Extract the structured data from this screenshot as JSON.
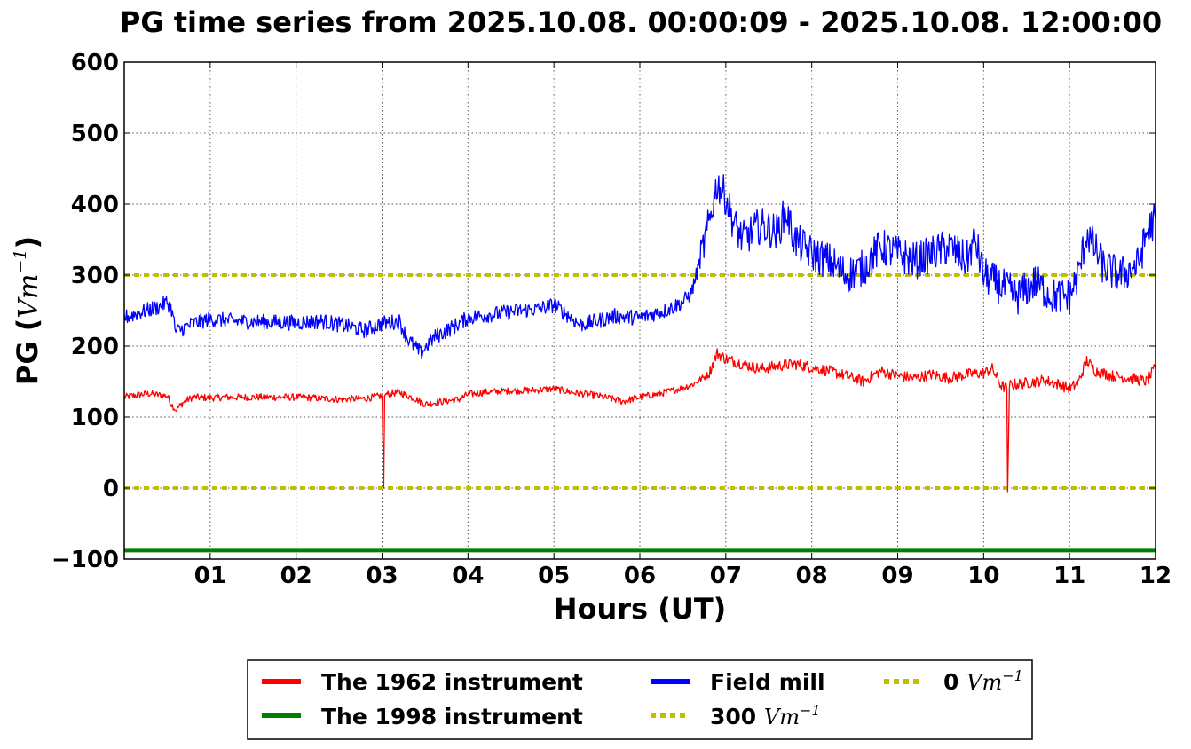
{
  "chart_data": {
    "type": "line",
    "title": "PG time series from 2025.10.08. 00:00:09 - 2025.10.08. 12:00:00",
    "xlabel": "Hours (UT)",
    "ylabel": "PG (Vm⁻¹)",
    "ylabel_main": "PG (",
    "ylabel_unit": "Vm",
    "ylabel_exp": "−1",
    "ylabel_close": ")",
    "xlim": [
      0,
      12
    ],
    "ylim": [
      -100,
      600
    ],
    "grid": true,
    "x_ticks": [
      {
        "value": 1,
        "label": "01"
      },
      {
        "value": 2,
        "label": "02"
      },
      {
        "value": 3,
        "label": "03"
      },
      {
        "value": 4,
        "label": "04"
      },
      {
        "value": 5,
        "label": "05"
      },
      {
        "value": 6,
        "label": "06"
      },
      {
        "value": 7,
        "label": "07"
      },
      {
        "value": 8,
        "label": "08"
      },
      {
        "value": 9,
        "label": "09"
      },
      {
        "value": 10,
        "label": "10"
      },
      {
        "value": 11,
        "label": "11"
      },
      {
        "value": 12,
        "label": "12"
      }
    ],
    "y_ticks": [
      {
        "value": -100,
        "label": "−100"
      },
      {
        "value": 0,
        "label": "0"
      },
      {
        "value": 100,
        "label": "100"
      },
      {
        "value": 200,
        "label": "200"
      },
      {
        "value": 300,
        "label": "300"
      },
      {
        "value": 400,
        "label": "400"
      },
      {
        "value": 500,
        "label": "500"
      },
      {
        "value": 600,
        "label": "600"
      }
    ],
    "legend_position": "below",
    "series": [
      {
        "name": "The 1962 instrument",
        "color": "#ff0000",
        "style": "solid",
        "x": [
          0,
          0.1,
          0.2,
          0.3,
          0.4,
          0.5,
          0.55,
          0.6,
          0.7,
          0.8,
          1.0,
          1.2,
          1.5,
          1.8,
          2.0,
          2.2,
          2.5,
          2.8,
          3.0,
          3.02,
          3.03,
          3.05,
          3.2,
          3.4,
          3.5,
          3.7,
          3.9,
          4.0,
          4.2,
          4.5,
          4.8,
          5.0,
          5.2,
          5.5,
          5.7,
          5.8,
          6.0,
          6.2,
          6.4,
          6.6,
          6.8,
          6.9,
          7.0,
          7.2,
          7.4,
          7.6,
          7.8,
          8.0,
          8.2,
          8.4,
          8.6,
          8.8,
          9.0,
          9.2,
          9.4,
          9.6,
          9.8,
          10.0,
          10.1,
          10.2,
          10.27,
          10.28,
          10.3,
          10.5,
          10.7,
          10.9,
          11.0,
          11.1,
          11.2,
          11.3,
          11.5,
          11.7,
          11.9,
          12.0
        ],
        "y": [
          128,
          130,
          132,
          133,
          131,
          130,
          118,
          110,
          122,
          128,
          127,
          128,
          128,
          128,
          128,
          127,
          125,
          126,
          130,
          0,
          130,
          132,
          135,
          125,
          118,
          122,
          125,
          132,
          135,
          137,
          138,
          140,
          135,
          130,
          125,
          122,
          128,
          132,
          138,
          145,
          160,
          190,
          182,
          175,
          168,
          172,
          175,
          170,
          165,
          158,
          150,
          165,
          158,
          155,
          160,
          155,
          160,
          162,
          168,
          145,
          140,
          -5,
          145,
          148,
          152,
          145,
          140,
          148,
          180,
          165,
          158,
          155,
          150,
          170
        ]
      },
      {
        "name": "The 1998 instrument",
        "color": "#008000",
        "style": "solid",
        "x": [
          0,
          12
        ],
        "y": [
          -88,
          -88
        ]
      },
      {
        "name": "Field mill",
        "color": "#0000ff",
        "style": "solid",
        "x": [
          0,
          0.2,
          0.4,
          0.5,
          0.55,
          0.6,
          0.8,
          1.0,
          1.3,
          1.6,
          2.0,
          2.3,
          2.6,
          2.8,
          3.0,
          3.2,
          3.3,
          3.45,
          3.6,
          3.8,
          3.9,
          4.0,
          4.3,
          4.6,
          4.8,
          5.0,
          5.2,
          5.3,
          5.5,
          5.7,
          6.0,
          6.3,
          6.5,
          6.6,
          6.7,
          6.8,
          6.9,
          7.0,
          7.1,
          7.2,
          7.4,
          7.6,
          7.7,
          7.8,
          8.0,
          8.2,
          8.4,
          8.6,
          8.8,
          9.0,
          9.2,
          9.4,
          9.6,
          9.8,
          9.9,
          10.0,
          10.2,
          10.4,
          10.6,
          10.8,
          11.0,
          11.1,
          11.2,
          11.4,
          11.6,
          11.8,
          11.9,
          12.0
        ],
        "y": [
          240,
          248,
          255,
          262,
          252,
          220,
          232,
          238,
          235,
          234,
          233,
          235,
          228,
          222,
          232,
          235,
          210,
          190,
          212,
          225,
          232,
          240,
          245,
          250,
          252,
          258,
          240,
          230,
          235,
          242,
          240,
          250,
          262,
          275,
          320,
          370,
          430,
          410,
          370,
          350,
          370,
          360,
          390,
          350,
          330,
          320,
          300,
          310,
          340,
          330,
          320,
          330,
          340,
          320,
          350,
          300,
          285,
          270,
          290,
          270,
          270,
          300,
          360,
          310,
          300,
          315,
          360,
          380
        ]
      },
      {
        "name": "300 Vm⁻¹",
        "name_prefix": "300 ",
        "name_unit": "Vm",
        "name_exp": "−1",
        "color": "#bfbf00",
        "style": "dotted",
        "x": [
          0,
          12
        ],
        "y": [
          300,
          300
        ]
      },
      {
        "name": "0 Vm⁻¹",
        "name_prefix": "0 ",
        "name_unit": "Vm",
        "name_exp": "−1",
        "color": "#bfbf00",
        "style": "dotted",
        "x": [
          0,
          12
        ],
        "y": [
          0,
          0
        ]
      }
    ]
  }
}
